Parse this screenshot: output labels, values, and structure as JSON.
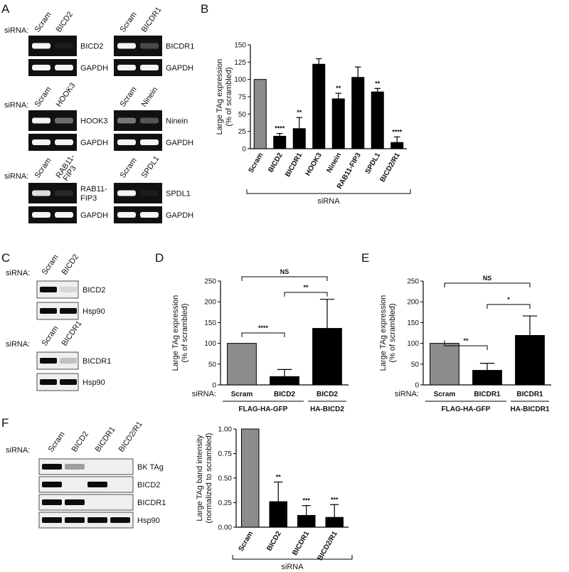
{
  "figure": {
    "panel_letters": [
      "A",
      "B",
      "C",
      "D",
      "E",
      "F"
    ],
    "sirna_label": "siRNA:",
    "siRNA_axis_word": "siRNA"
  },
  "panelA": {
    "groups": [
      {
        "lanes": [
          "Scram",
          "BICD2"
        ],
        "gels": [
          {
            "label": "BICD2",
            "bands": [
              1,
              0.05
            ]
          },
          {
            "label": "GAPDH",
            "bands": [
              1,
              1
            ]
          }
        ]
      },
      {
        "lanes": [
          "Scram",
          "BICDR1"
        ],
        "gels": [
          {
            "label": "BICDR1",
            "bands": [
              1,
              0.25
            ]
          },
          {
            "label": "GAPDH",
            "bands": [
              1,
              1
            ]
          }
        ]
      },
      {
        "lanes": [
          "Scram",
          "HOOK3"
        ],
        "gels": [
          {
            "label": "HOOK3",
            "bands": [
              1,
              0.4
            ]
          },
          {
            "label": "GAPDH",
            "bands": [
              1,
              1
            ]
          }
        ]
      },
      {
        "lanes": [
          "Scram",
          "Ninein"
        ],
        "gels": [
          {
            "label": "Ninein",
            "bands": [
              0.45,
              0.3
            ]
          },
          {
            "label": "GAPDH",
            "bands": [
              1,
              1
            ]
          }
        ]
      },
      {
        "lanes": [
          "Scram",
          "RAB11-FIP3"
        ],
        "gels": [
          {
            "label": "RAB11-FIP3",
            "bands": [
              0.9,
              0.1
            ]
          },
          {
            "label": "GAPDH",
            "bands": [
              1,
              1
            ]
          }
        ]
      },
      {
        "lanes": [
          "Scram",
          "SPDL1"
        ],
        "gels": [
          {
            "label": "SPDL1",
            "bands": [
              1,
              0.05
            ]
          },
          {
            "label": "GAPDH",
            "bands": [
              1,
              1
            ]
          }
        ]
      }
    ]
  },
  "panelC": {
    "blots": [
      {
        "lanes": [
          "Scram",
          "BICD2"
        ],
        "rows": [
          {
            "label": "BICD2",
            "bands": [
              1,
              0.1
            ]
          },
          {
            "label": "Hsp90",
            "bands": [
              1,
              1
            ]
          }
        ]
      },
      {
        "lanes": [
          "Scram",
          "BICDR1"
        ],
        "rows": [
          {
            "label": "BICDR1",
            "bands": [
              1,
              0.2
            ]
          },
          {
            "label": "Hsp90",
            "bands": [
              1,
              1
            ]
          }
        ]
      }
    ]
  },
  "panelF_blot": {
    "lanes": [
      "Scram",
      "BICD2",
      "BICDR1",
      "BICD2/R1"
    ],
    "rows": [
      {
        "label": "BK TAg",
        "bands": [
          1,
          0.35,
          0,
          0
        ]
      },
      {
        "label": "BICD2",
        "bands": [
          1,
          0,
          1,
          0
        ]
      },
      {
        "label": "BICDR1",
        "bands": [
          1,
          1,
          0,
          0
        ]
      },
      {
        "label": "Hsp90",
        "bands": [
          1,
          1,
          1,
          1
        ]
      }
    ]
  },
  "chart_data": [
    {
      "id": "B",
      "type": "bar",
      "ylabel": "Large TAg expression\n(% of scrambled)",
      "ylim": [
        0,
        150
      ],
      "yticks": [
        0,
        25,
        50,
        75,
        100,
        125,
        150
      ],
      "xlabel": "siRNA",
      "categories": [
        "Scram",
        "BICD2",
        "BICDR1",
        "HOOK3",
        "Ninein",
        "RAB11-FIP3",
        "SPDL1",
        "BICD2/R1"
      ],
      "values": [
        100,
        18,
        29,
        122,
        72,
        103,
        82,
        9
      ],
      "errors": [
        0,
        4,
        16,
        8,
        8,
        15,
        5,
        8
      ],
      "significance": [
        "",
        "****",
        "**",
        "",
        "**",
        "",
        "**",
        "****"
      ],
      "colors": [
        "#8c8c8c",
        "#000000",
        "#000000",
        "#000000",
        "#000000",
        "#000000",
        "#000000",
        "#000000"
      ]
    },
    {
      "id": "D",
      "type": "bar",
      "ylabel": "Large TAg expression\n(% of scrambled)",
      "ylim": [
        0,
        250
      ],
      "yticks": [
        0,
        50,
        100,
        150,
        200,
        250
      ],
      "categories": [
        "Scram",
        "BICD2",
        "BICD2"
      ],
      "values": [
        100,
        20,
        136
      ],
      "errors": [
        0,
        17,
        70
      ],
      "colors": [
        "#8c8c8c",
        "#000000",
        "#000000"
      ],
      "groups": [
        {
          "label": "FLAG-HA-GFP",
          "span": [
            0,
            1
          ]
        },
        {
          "label": "HA-BICD2",
          "span": [
            2,
            2
          ]
        }
      ],
      "comparisons": [
        {
          "pair": [
            0,
            2
          ],
          "label": "NS",
          "level": 2
        },
        {
          "pair": [
            1,
            2
          ],
          "label": "**",
          "level": 1
        },
        {
          "pair": [
            0,
            1
          ],
          "label": "****",
          "level": 0
        }
      ]
    },
    {
      "id": "E",
      "type": "bar",
      "ylabel": "Large TAg expression\n(% of scrambled)",
      "ylim": [
        0,
        250
      ],
      "yticks": [
        0,
        50,
        100,
        150,
        200,
        250
      ],
      "categories": [
        "Scram",
        "BICDR1",
        "BICDR1"
      ],
      "values": [
        100,
        35,
        119
      ],
      "errors": [
        0,
        17,
        47
      ],
      "colors": [
        "#8c8c8c",
        "#000000",
        "#000000"
      ],
      "groups": [
        {
          "label": "FLAG-HA-GFP",
          "span": [
            0,
            1
          ]
        },
        {
          "label": "HA-BICDR1",
          "span": [
            2,
            2
          ]
        }
      ],
      "comparisons": [
        {
          "pair": [
            0,
            2
          ],
          "label": "NS",
          "level": 2
        },
        {
          "pair": [
            1,
            2
          ],
          "label": "*",
          "level": 1
        },
        {
          "pair": [
            0,
            1
          ],
          "label": "**",
          "level": 0
        }
      ]
    },
    {
      "id": "F",
      "type": "bar",
      "ylabel": "Large TAg band intensity\n(normalized to scrambled)",
      "ylim": [
        0,
        1.0
      ],
      "yticks": [
        0,
        0.25,
        0.5,
        0.75,
        1.0
      ],
      "ytick_labels": [
        "0.00",
        "0.25",
        "0.50",
        "0.75",
        "1.00"
      ],
      "xlabel": "siRNA",
      "categories": [
        "Scram",
        "BICD2",
        "BICDR1",
        "BICD2/R1"
      ],
      "values": [
        1.0,
        0.26,
        0.12,
        0.1
      ],
      "errors": [
        0,
        0.2,
        0.1,
        0.13
      ],
      "significance": [
        "",
        "**",
        "***",
        "***"
      ],
      "colors": [
        "#8c8c8c",
        "#000000",
        "#000000",
        "#000000"
      ]
    }
  ]
}
